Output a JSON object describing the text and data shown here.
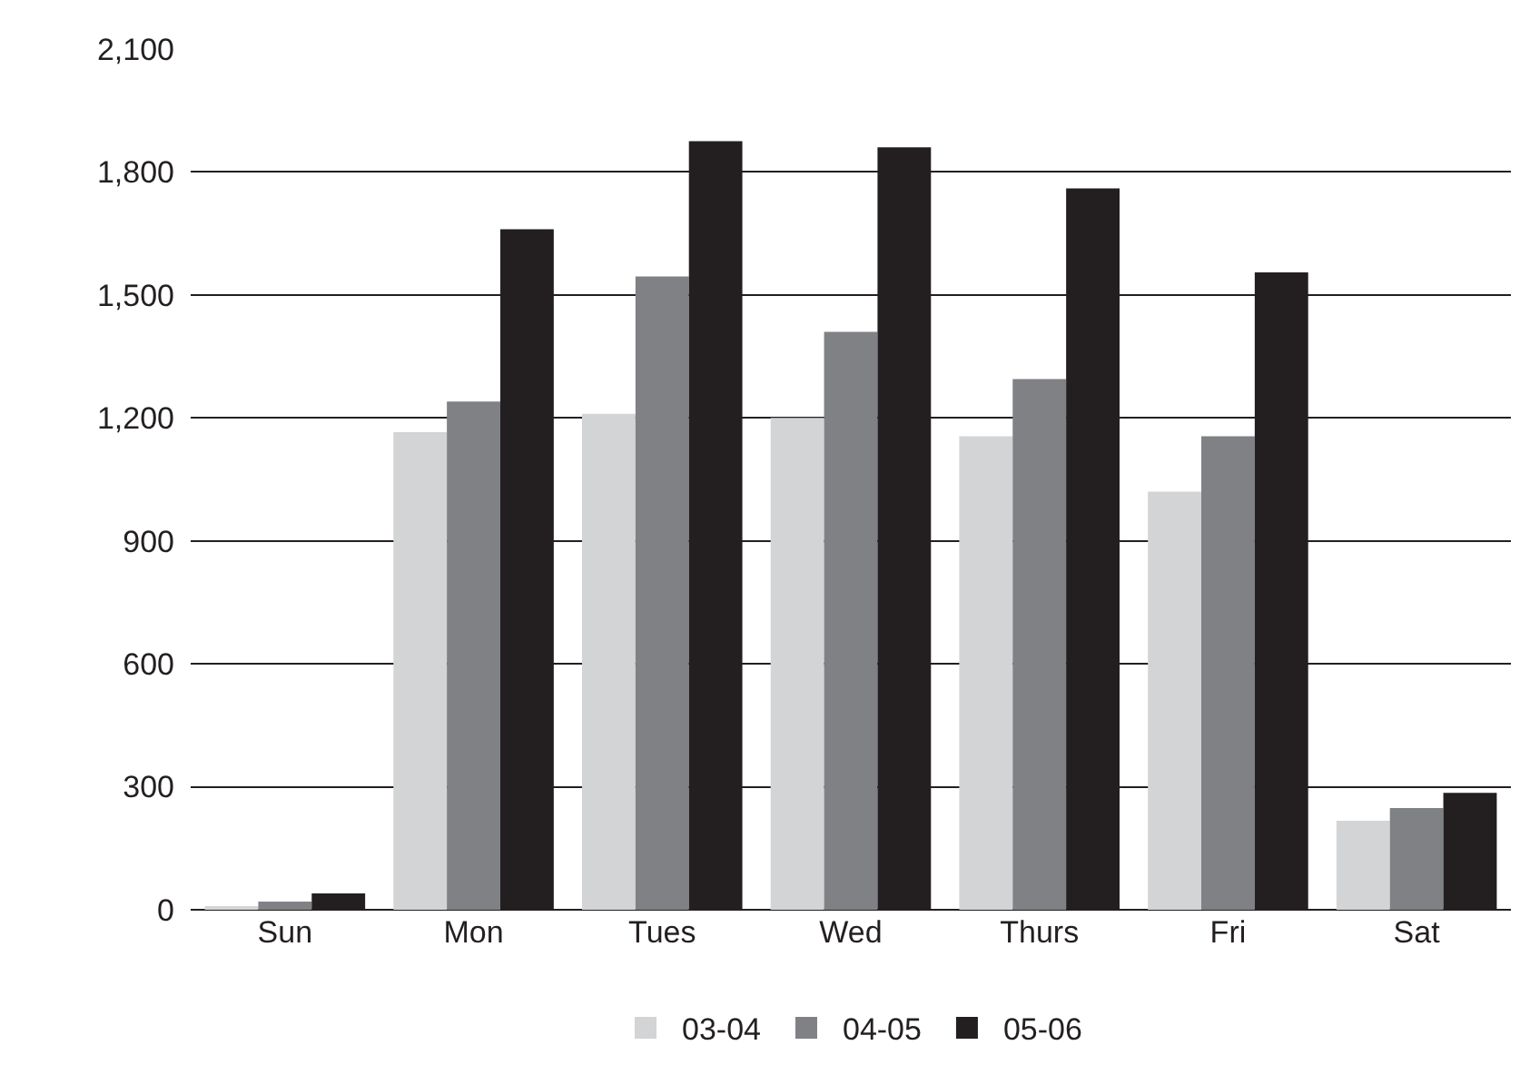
{
  "chart_data": {
    "type": "bar",
    "categories": [
      "Sun",
      "Mon",
      "Tues",
      "Wed",
      "Thurs",
      "Fri",
      "Sat"
    ],
    "series": [
      {
        "name": "03-04",
        "color": "#d3d4d6",
        "values": [
          8,
          1165,
          1210,
          1200,
          1155,
          1020,
          217
        ]
      },
      {
        "name": "04-05",
        "color": "#808184",
        "values": [
          20,
          1240,
          1545,
          1410,
          1295,
          1155,
          248
        ]
      },
      {
        "name": "05-06",
        "color": "#231f20",
        "values": [
          40,
          1660,
          1875,
          1860,
          1760,
          1555,
          285
        ]
      }
    ],
    "ylim": [
      0,
      2100
    ],
    "yticks": [
      0,
      300,
      600,
      900,
      {
        "value": 1200,
        "label": "1,200"
      },
      {
        "value": 1500,
        "label": "1,500"
      },
      {
        "value": 1800,
        "label": "1,800"
      },
      {
        "value": 2100,
        "label": "2,100"
      }
    ],
    "grid": "y",
    "legend": "bottom"
  }
}
